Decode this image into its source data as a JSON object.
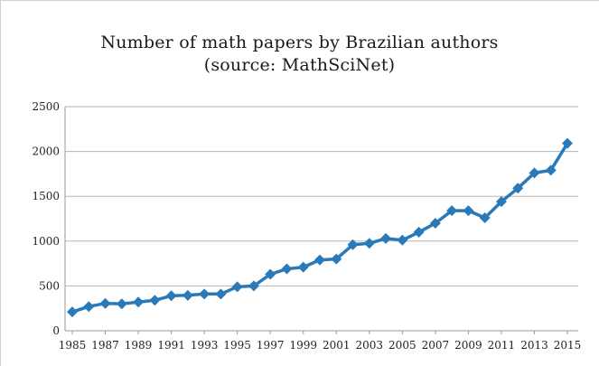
{
  "chart_data": {
    "type": "line",
    "title": "Number of math papers by Brazilian authors",
    "subtitle": "(source: MathSciNet)",
    "xlabel": "",
    "ylabel": "",
    "x": [
      1985,
      1986,
      1987,
      1988,
      1989,
      1990,
      1991,
      1992,
      1993,
      1994,
      1995,
      1996,
      1997,
      1998,
      1999,
      2000,
      2001,
      2002,
      2003,
      2004,
      2005,
      2006,
      2007,
      2008,
      2009,
      2010,
      2011,
      2012,
      2013,
      2014,
      2015
    ],
    "x_tick_labels": [
      "1985",
      "1987",
      "1989",
      "1991",
      "1993",
      "1995",
      "1997",
      "1999",
      "2001",
      "2003",
      "2005",
      "2007",
      "2009",
      "2011",
      "2013",
      "2015"
    ],
    "y_tick_labels": [
      "0",
      "500",
      "1000",
      "1500",
      "2000",
      "2500"
    ],
    "ylim": [
      0,
      2500
    ],
    "series": [
      {
        "values": [
          210,
          270,
          305,
          300,
          320,
          340,
          390,
          395,
          410,
          410,
          490,
          500,
          630,
          690,
          710,
          790,
          800,
          960,
          975,
          1030,
          1010,
          1100,
          1200,
          1340,
          1340,
          1260,
          1440,
          1590,
          1760,
          1790,
          2090
        ],
        "color": "#2a7ab9"
      }
    ],
    "grid": true,
    "legend": "none",
    "marker": "diamond"
  }
}
